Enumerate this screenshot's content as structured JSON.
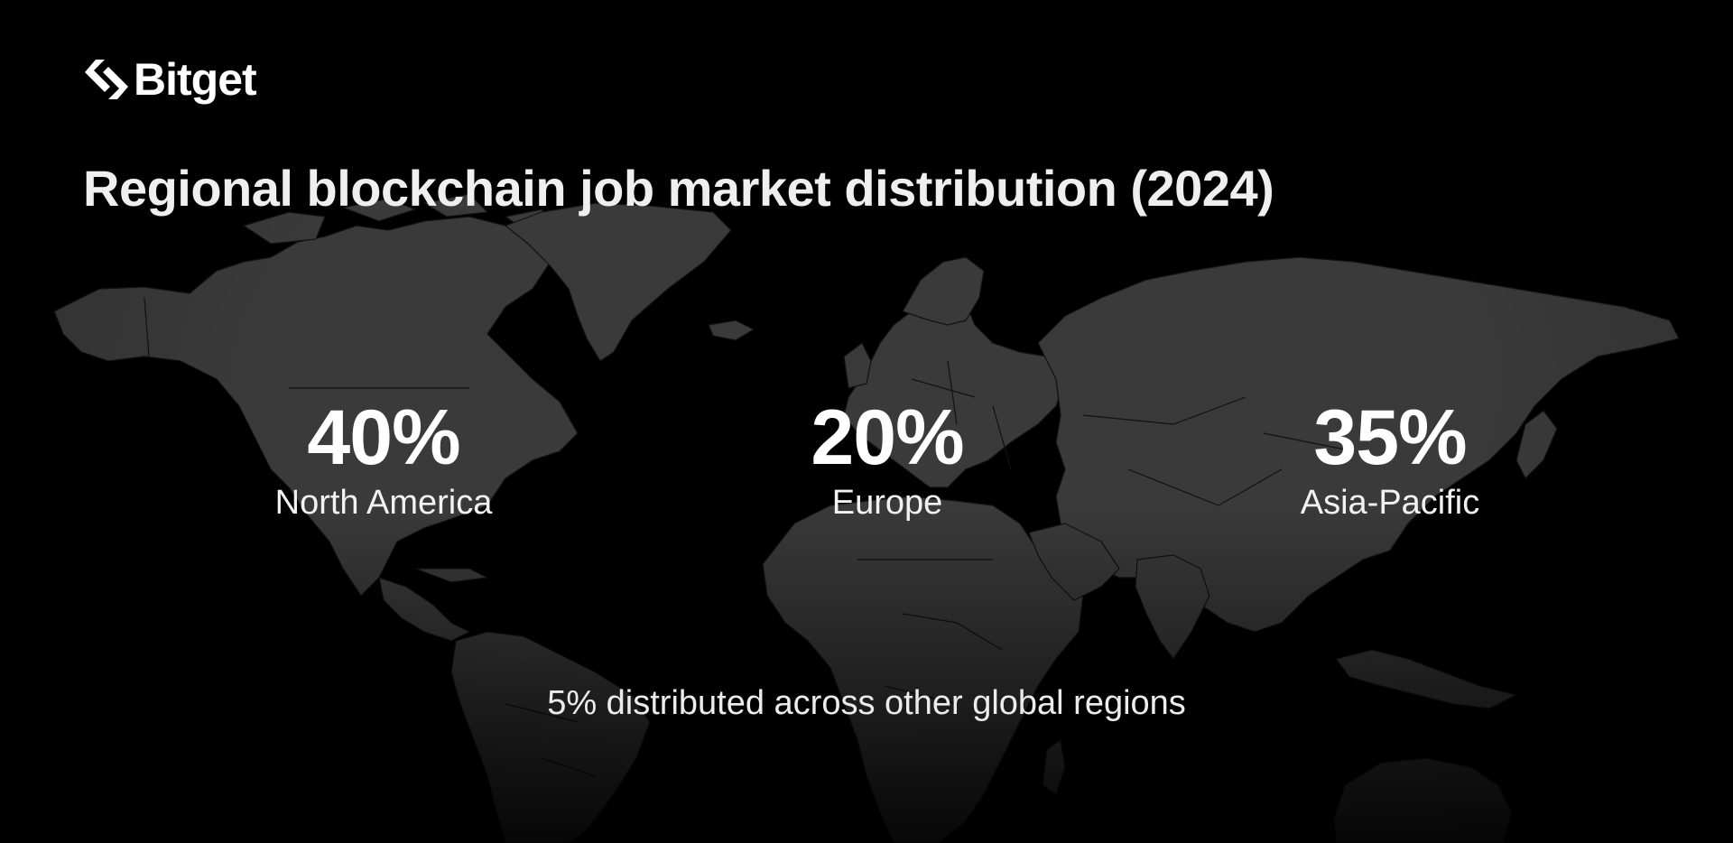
{
  "brand": {
    "name": "Bitget",
    "logo_icon": "bitget-arrow-logo-icon"
  },
  "title": "Regional blockchain job market distribution (2024)",
  "regions": [
    {
      "value": "40%",
      "label": "North America",
      "share": 40
    },
    {
      "value": "20%",
      "label": "Europe",
      "share": 20
    },
    {
      "value": "35%",
      "label": "Asia-Pacific",
      "share": 35
    }
  ],
  "note": "5% distributed across other global regions",
  "colors": {
    "background": "#000000",
    "land": "#3a3a3a",
    "text": "#ffffff"
  }
}
